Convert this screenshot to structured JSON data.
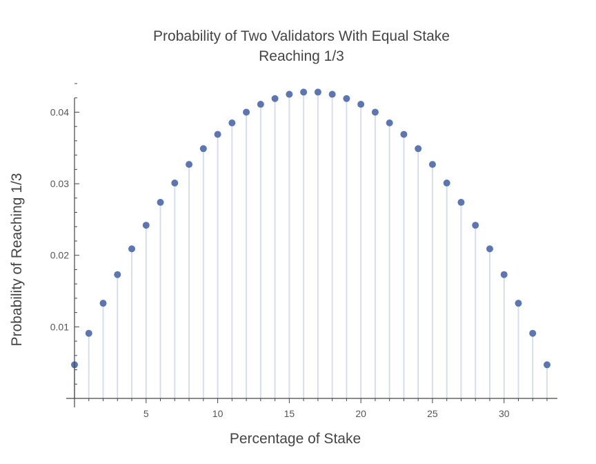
{
  "chart_data": {
    "type": "scatter",
    "style": "stem",
    "title": [
      "Probability of Two Validators With Equal Stake",
      "Reaching 1/3"
    ],
    "xlabel": "Percentage of Stake",
    "ylabel": "Probability of Reaching 1/3",
    "x": [
      0,
      1,
      2,
      3,
      4,
      5,
      6,
      7,
      8,
      9,
      10,
      11,
      12,
      13,
      14,
      15,
      16,
      17,
      18,
      19,
      20,
      21,
      22,
      23,
      24,
      25,
      26,
      27,
      28,
      29,
      30,
      31,
      32,
      33
    ],
    "values": [
      0.0047,
      0.0091,
      0.0133,
      0.0173,
      0.0209,
      0.0242,
      0.0274,
      0.0301,
      0.0327,
      0.0349,
      0.0369,
      0.0385,
      0.04,
      0.0411,
      0.0419,
      0.0425,
      0.0428,
      0.0428,
      0.0425,
      0.0419,
      0.0411,
      0.04,
      0.0385,
      0.0369,
      0.0349,
      0.0327,
      0.0301,
      0.0274,
      0.0242,
      0.0209,
      0.0173,
      0.0133,
      0.0091,
      0.0047
    ],
    "xticks": [
      "5",
      "10",
      "15",
      "20",
      "25",
      "30"
    ],
    "xtick_values": [
      5,
      10,
      15,
      20,
      25,
      30
    ],
    "yticks": [
      "0.01",
      "0.02",
      "0.03",
      "0.04"
    ],
    "ytick_values": [
      0.01,
      0.02,
      0.03,
      0.04
    ],
    "xlim": [
      0,
      33.5
    ],
    "ylim": [
      0,
      0.044
    ],
    "grid": false,
    "colors": {
      "point": "#5b76b3",
      "stem": "#d6deee",
      "axis": "#444444"
    }
  }
}
